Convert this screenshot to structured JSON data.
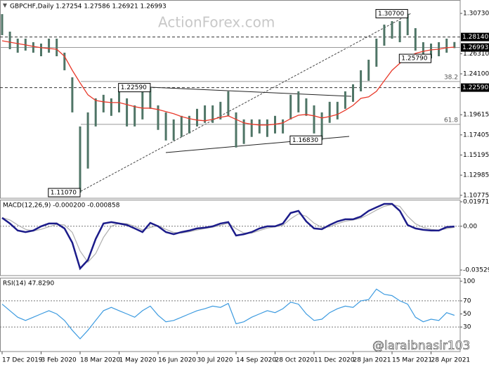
{
  "chart_data": [
    {
      "type": "ohlc",
      "title": "GBPCHF,Daily 1.27254 1.27586 1.26921 1.26993",
      "watermark": "ActionForex.com",
      "categories": [
        "17 Dec 2019",
        null,
        null,
        null,
        null,
        "3 Feb 2020",
        null,
        null,
        null,
        null,
        "18 Mar 2020",
        null,
        null,
        null,
        null,
        "1 May 2020",
        null,
        null,
        null,
        null,
        "16 Jun 2020",
        null,
        null,
        null,
        null,
        "30 Jul 2020",
        null,
        null,
        null,
        null,
        "14 Sep 2020",
        null,
        null,
        null,
        null,
        "28 Oct 2020",
        null,
        null,
        null,
        null,
        "11 Dec 2020",
        null,
        null,
        null,
        null,
        "28 Jan 2021",
        null,
        null,
        null,
        null,
        "15 Mar 2021",
        null,
        null,
        null,
        null,
        "28 Apr 2021",
        null,
        null,
        null
      ],
      "high": [
        1.3065,
        1.2873,
        1.2796,
        1.2796,
        1.2757,
        1.2742,
        1.2796,
        1.2796,
        1.2642,
        1.2372,
        1.1833,
        1.1987,
        1.2141,
        1.218,
        1.2141,
        1.2257,
        1.2141,
        1.2064,
        1.2218,
        1.2259,
        1.2064,
        1.1987,
        1.191,
        1.1949,
        1.1949,
        1.2026,
        1.2064,
        1.2064,
        1.2103,
        1.2218,
        1.1987,
        1.191,
        1.191,
        1.191,
        1.191,
        1.1949,
        1.191,
        1.218,
        1.2218,
        1.2141,
        1.2064,
        1.1987,
        1.2103,
        1.2103,
        1.2218,
        1.2295,
        1.2449,
        1.2565,
        1.2796,
        1.295,
        1.2988,
        1.2988,
        1.307,
        1.2911,
        1.2757,
        1.2742,
        1.2757,
        1.2796,
        1.2759
      ],
      "low": [
        1.2834,
        1.268,
        1.2642,
        1.2665,
        1.2642,
        1.2603,
        1.2642,
        1.2603,
        1.2449,
        1.1987,
        1.1107,
        1.1371,
        1.1833,
        1.1987,
        1.1949,
        1.1987,
        1.1833,
        1.1833,
        1.191,
        1.2026,
        1.1795,
        1.1679,
        1.1679,
        1.1718,
        1.1756,
        1.1833,
        1.1872,
        1.1872,
        1.191,
        1.1949,
        1.1602,
        1.1641,
        1.1718,
        1.1756,
        1.1718,
        1.1756,
        1.1756,
        1.191,
        1.1987,
        1.1949,
        1.1756,
        1.1683,
        1.1872,
        1.191,
        1.2026,
        1.2103,
        1.2218,
        1.2334,
        1.2488,
        1.2719,
        1.2796,
        1.2757,
        1.2834,
        1.2665,
        1.2603,
        1.2579,
        1.2603,
        1.2642,
        1.2692
      ],
      "color": "#4f7566",
      "ma_values": [
        1.2773,
        1.2757,
        1.2742,
        1.2727,
        1.2711,
        1.2696,
        1.2688,
        1.268,
        1.2603,
        1.2449,
        1.2311,
        1.218,
        1.2118,
        1.2103,
        1.2095,
        1.2095,
        1.2072,
        1.2049,
        1.2034,
        1.2034,
        1.2018,
        1.1995,
        1.1972,
        1.1941,
        1.1918,
        1.1903,
        1.1895,
        1.191,
        1.1933,
        1.1949,
        1.191,
        1.1872,
        1.1857,
        1.1849,
        1.1849,
        1.1857,
        1.1872,
        1.1918,
        1.1956,
        1.1964,
        1.1949,
        1.1926,
        1.1941,
        1.1964,
        1.2011,
        1.2064,
        1.2141,
        1.2157,
        1.2218,
        1.2334,
        1.2449,
        1.2526,
        1.2588,
        1.2634,
        1.2657,
        1.2673,
        1.268,
        1.2696,
        1.2703
      ],
      "ma_color": "#e8392a",
      "ylim": [
        1.1045,
        1.322
      ],
      "yticks": [
        {
          "value": 1.3073,
          "label": "1.30730"
        },
        {
          "value": 1.2631,
          "label": "1.26310"
        },
        {
          "value": 1.241,
          "label": "1.24100"
        },
        {
          "value": 1.19615,
          "label": "1.19615"
        },
        {
          "value": 1.17405,
          "label": "1.17405"
        },
        {
          "value": 1.15195,
          "label": "1.15195"
        },
        {
          "value": 1.12985,
          "label": "1.12985"
        },
        {
          "value": 1.10775,
          "label": "1.10775"
        }
      ],
      "levels": [
        {
          "value": 1.2814,
          "label": "1.28140",
          "style": "dashed"
        },
        {
          "value": 1.26993,
          "label": "1.26993",
          "style": "solid"
        },
        {
          "value": 1.2259,
          "label": "1.22590",
          "style": "dashed"
        }
      ],
      "fib_levels": [
        {
          "value": 1.2326,
          "label": "38.2"
        },
        {
          "value": 1.1856,
          "label": "61.8"
        }
      ],
      "annotations": [
        {
          "value": 1.307,
          "label": "1.30700"
        },
        {
          "value": 1.2579,
          "label": "1.25790"
        },
        {
          "value": 1.2259,
          "label": "1.22590"
        },
        {
          "value": 1.1683,
          "label": "1.16830"
        },
        {
          "value": 1.1107,
          "label": "1.11070"
        }
      ]
    },
    {
      "type": "macd",
      "title": "MACD(12,26,9) -0.000200 -0.000858",
      "values": [
        0.0067,
        0.0022,
        -0.0035,
        -0.0047,
        -0.0035,
        -0.0001,
        0.0022,
        0.0022,
        -0.0018,
        -0.0132,
        -0.0341,
        -0.0273,
        -0.0103,
        0.0022,
        0.0033,
        0.0022,
        0.001,
        -0.0018,
        -0.0047,
        0.0027,
        -0.0001,
        -0.0047,
        -0.0064,
        -0.0047,
        -0.0035,
        -0.0018,
        -0.0012,
        -0.0001,
        0.0022,
        0.0033,
        -0.0075,
        -0.0064,
        -0.0047,
        -0.0018,
        -0.0001,
        -0.0001,
        0.0022,
        0.0107,
        0.0124,
        0.0039,
        -0.0018,
        -0.0024,
        0.001,
        0.0039,
        0.0056,
        0.0056,
        0.0078,
        0.0124,
        0.0152,
        0.018,
        0.018,
        0.0124,
        0.001,
        -0.0018,
        -0.0029,
        -0.0035,
        -0.0035,
        -0.0007,
        -0.0002
      ],
      "color": "#1c1c8a",
      "signal": [
        0.007,
        0.005,
        0.001,
        -0.0025,
        -0.0038,
        -0.0025,
        -0.0005,
        0.0015,
        0.001,
        -0.005,
        -0.02,
        -0.029,
        -0.022,
        -0.009,
        0.0,
        0.0025,
        0.002,
        0.0,
        -0.003,
        -0.001,
        0.0005,
        -0.0025,
        -0.005,
        -0.0055,
        -0.0045,
        -0.003,
        -0.0018,
        -0.0008,
        0.0008,
        0.0025,
        -0.002,
        -0.0055,
        -0.0055,
        -0.0035,
        -0.0015,
        -0.0005,
        0.0008,
        0.006,
        0.01,
        0.008,
        0.0025,
        -0.001,
        -0.0005,
        0.002,
        0.004,
        0.005,
        0.0065,
        0.0095,
        0.013,
        0.016,
        0.0175,
        0.016,
        0.008,
        0.002,
        -0.001,
        -0.0025,
        -0.0032,
        -0.002,
        -0.000858
      ],
      "signal_color": "#b0b0b0",
      "ylim": [
        -0.0398,
        0.0214
      ],
      "yticks": [
        {
          "value": 0.019718,
          "label": "0.019718"
        },
        {
          "value": 0,
          "label": "0.00"
        },
        {
          "value": -0.035295,
          "label": "-0.035295"
        }
      ],
      "levels": [
        0
      ]
    },
    {
      "type": "rsi",
      "title": "RSI(14) 47.8290",
      "values": [
        65,
        55,
        45,
        40,
        45,
        50,
        55,
        50,
        40,
        25,
        12,
        25,
        40,
        55,
        60,
        55,
        50,
        45,
        55,
        62,
        48,
        38,
        40,
        45,
        50,
        55,
        58,
        62,
        60,
        66,
        35,
        38,
        45,
        50,
        55,
        52,
        58,
        68,
        65,
        50,
        40,
        42,
        52,
        58,
        62,
        60,
        70,
        72,
        88,
        80,
        78,
        70,
        65,
        45,
        38,
        42,
        40,
        52,
        47.829
      ],
      "color": "#3d9be0",
      "ylim": [
        -7.5,
        105.4
      ],
      "yticks": [
        100,
        70,
        50,
        30
      ],
      "levels": [
        70,
        30
      ]
    }
  ],
  "footer": {
    "watermark": "@laraibnasir103"
  }
}
